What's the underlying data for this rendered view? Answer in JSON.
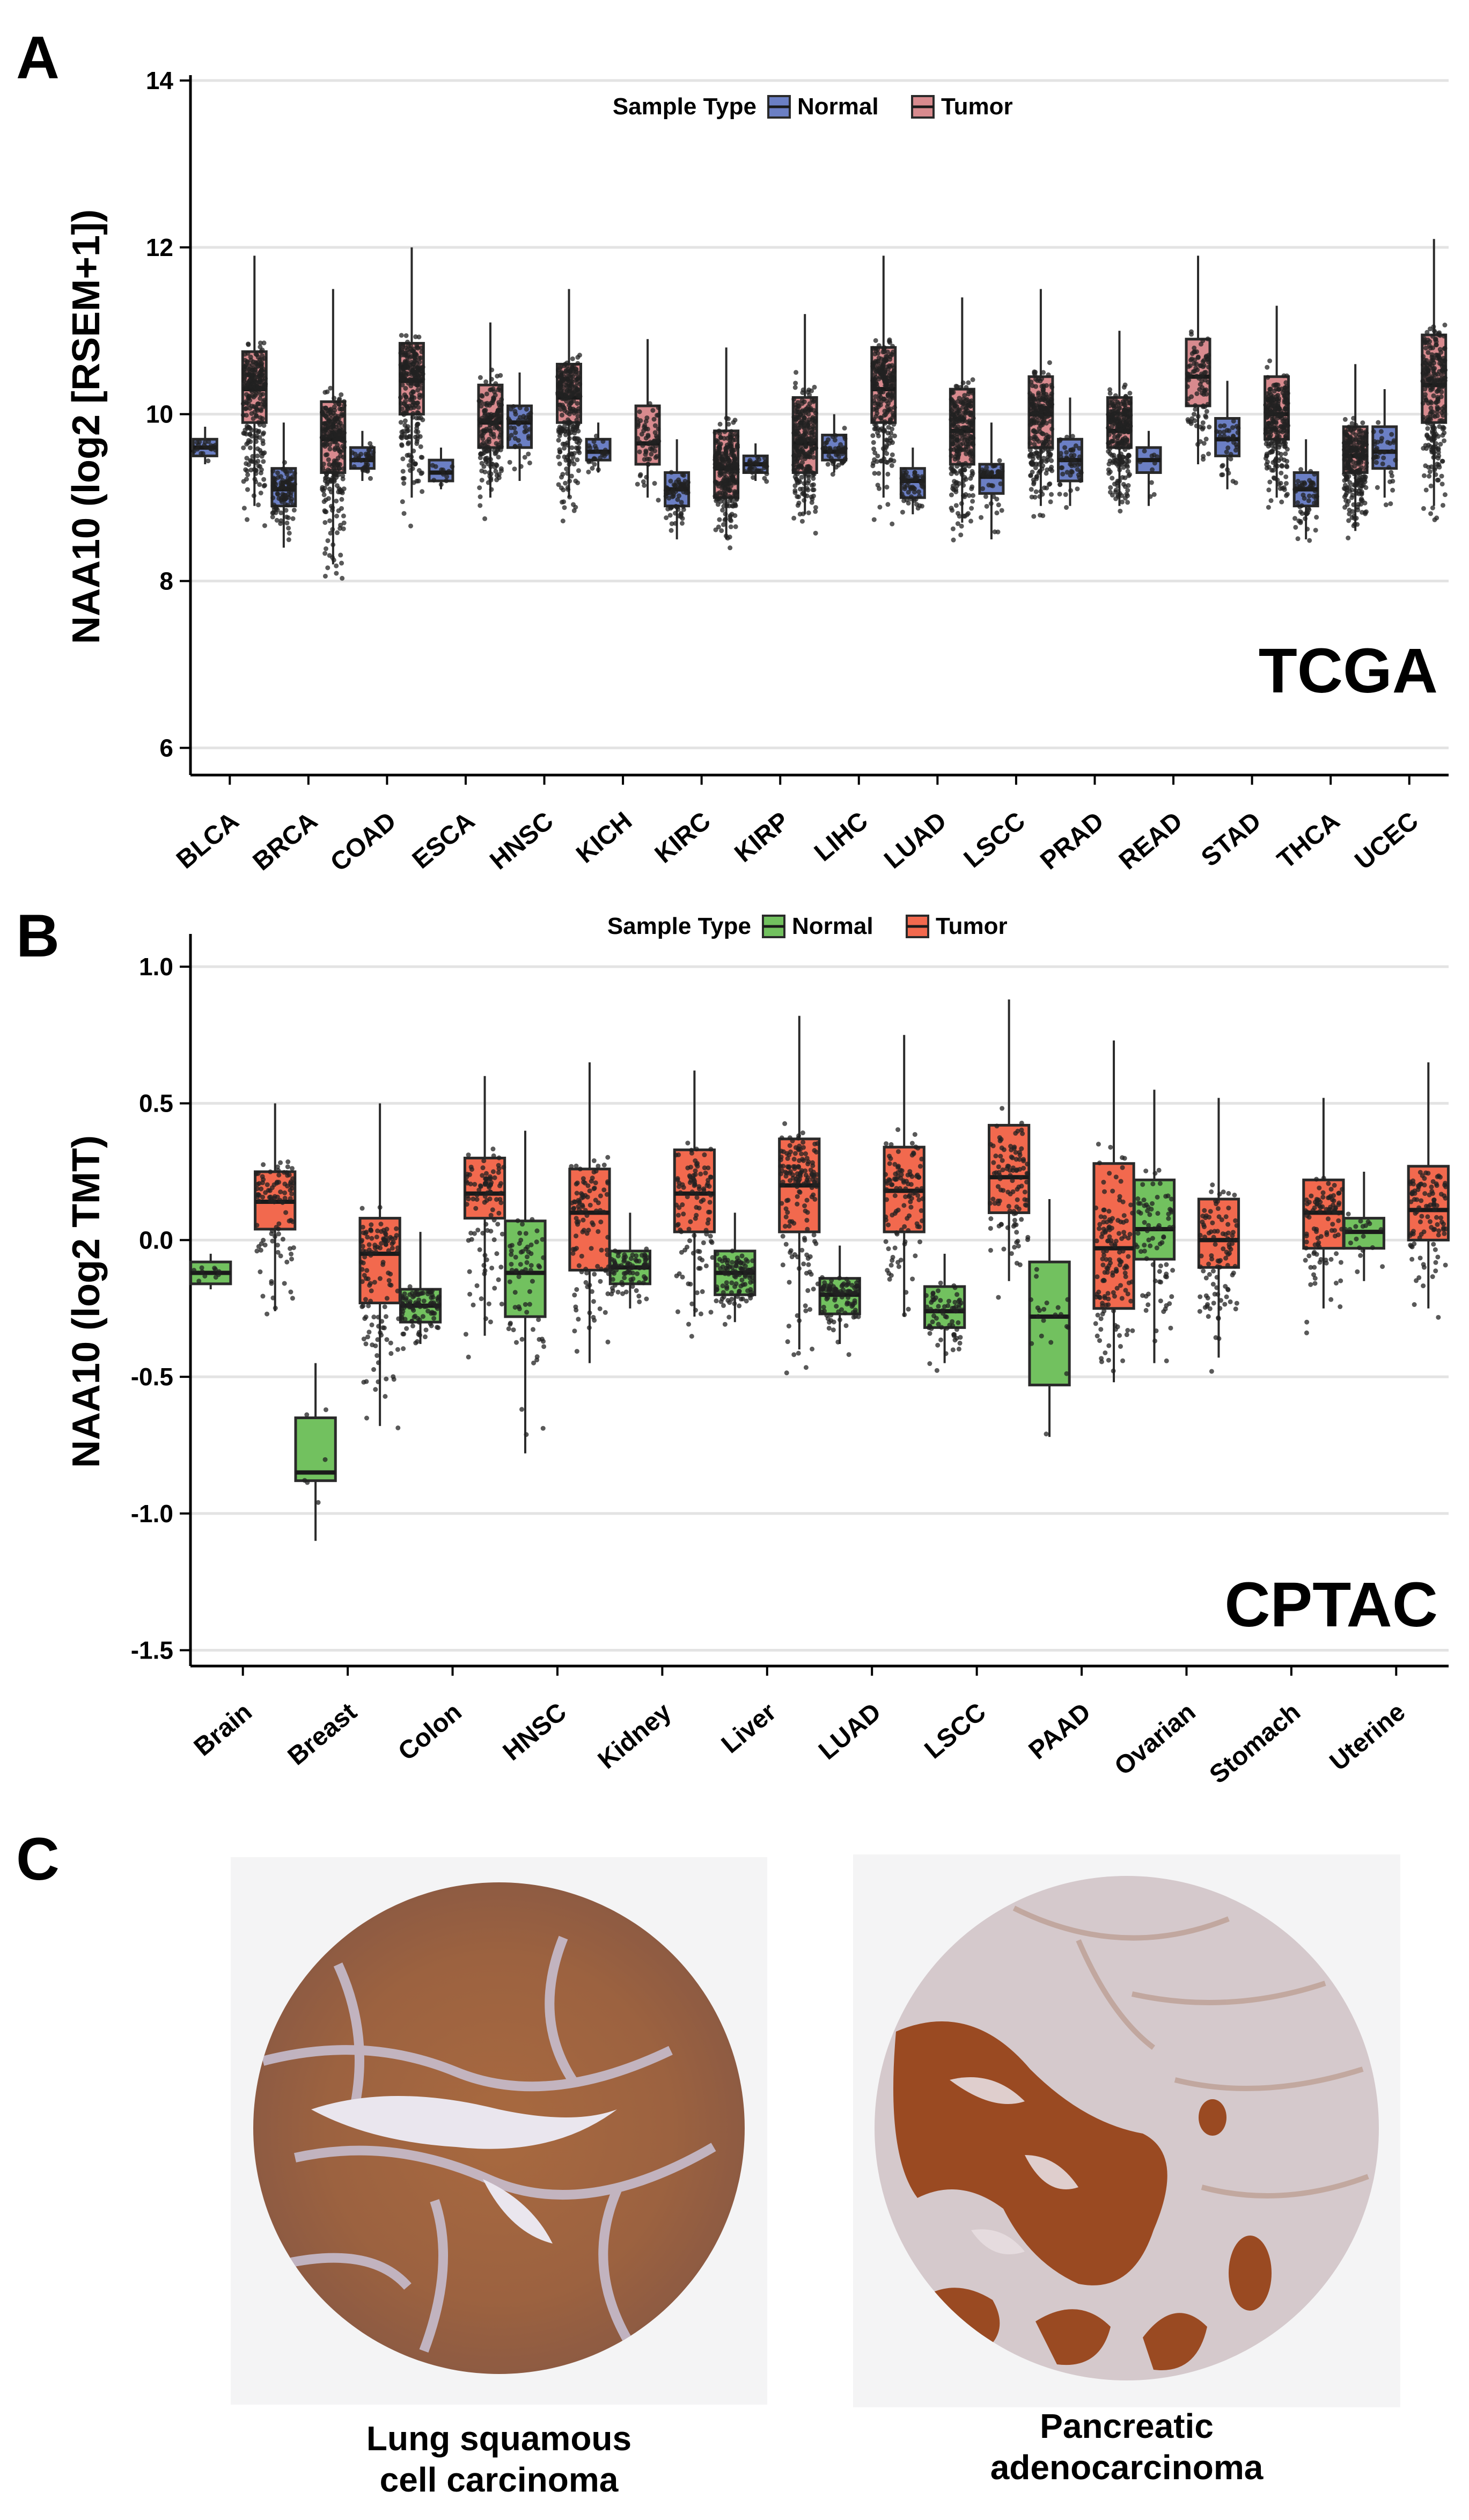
{
  "panels": {
    "a": "A",
    "b": "B",
    "c": "C"
  },
  "colors": {
    "normal_a": "#6b7fc4",
    "tumor_a": "#d88a8e",
    "normal_b": "#72c15f",
    "tumor_b": "#f2694e",
    "grid": "#e3e3e3"
  },
  "chart_data": [
    {
      "type": "box",
      "title": "",
      "xlabel": "",
      "ylabel": "NAA10 (log2 [RSEM+1])",
      "ylim": [
        5.7,
        14
      ],
      "yticks": [
        6,
        8,
        10,
        12,
        14
      ],
      "legend_title": "Sample Type",
      "legend": [
        "Normal",
        "Tumor"
      ],
      "annotation": "TCGA",
      "categories": [
        "BLCA",
        "BRCA",
        "COAD",
        "ESCA",
        "HNSC",
        "KICH",
        "KIRC",
        "KIRP",
        "LIHC",
        "LUAD",
        "LSCC",
        "PRAD",
        "READ",
        "STAD",
        "THCA",
        "UCEC"
      ],
      "series": [
        {
          "name": "Normal",
          "boxes": [
            {
              "min": 9.4,
              "q1": 9.5,
              "median": 9.6,
              "q3": 9.7,
              "max": 9.85,
              "n": 19
            },
            {
              "min": 8.4,
              "q1": 8.9,
              "median": 9.1,
              "q3": 9.35,
              "max": 9.9,
              "n": 110
            },
            {
              "min": 9.2,
              "q1": 9.35,
              "median": 9.45,
              "q3": 9.6,
              "max": 9.8,
              "n": 41
            },
            {
              "min": 9.1,
              "q1": 9.2,
              "median": 9.3,
              "q3": 9.45,
              "max": 9.6,
              "n": 11
            },
            {
              "min": 9.2,
              "q1": 9.6,
              "median": 9.9,
              "q3": 10.1,
              "max": 10.5,
              "n": 44
            },
            {
              "min": 9.3,
              "q1": 9.45,
              "median": 9.55,
              "q3": 9.7,
              "max": 9.9,
              "n": 25
            },
            {
              "min": 8.5,
              "q1": 8.9,
              "median": 9.1,
              "q3": 9.3,
              "max": 9.7,
              "n": 72
            },
            {
              "min": 9.2,
              "q1": 9.3,
              "median": 9.4,
              "q3": 9.5,
              "max": 9.65,
              "n": 32
            },
            {
              "min": 9.3,
              "q1": 9.45,
              "median": 9.55,
              "q3": 9.75,
              "max": 10,
              "n": 50
            },
            {
              "min": 8.8,
              "q1": 9.0,
              "median": 9.2,
              "q3": 9.35,
              "max": 9.6,
              "n": 59
            },
            {
              "min": 8.5,
              "q1": 9.05,
              "median": 9.25,
              "q3": 9.4,
              "max": 9.9,
              "n": 51
            },
            {
              "min": 8.9,
              "q1": 9.2,
              "median": 9.45,
              "q3": 9.7,
              "max": 10.2,
              "n": 52
            },
            {
              "min": 8.9,
              "q1": 9.3,
              "median": 9.45,
              "q3": 9.6,
              "max": 9.8,
              "n": 10
            },
            {
              "min": 9.1,
              "q1": 9.5,
              "median": 9.7,
              "q3": 9.95,
              "max": 10.4,
              "n": 35
            },
            {
              "min": 8.5,
              "q1": 8.9,
              "median": 9.1,
              "q3": 9.3,
              "max": 9.7,
              "n": 59
            },
            {
              "min": 9.0,
              "q1": 9.35,
              "median": 9.55,
              "q3": 9.85,
              "max": 10.3,
              "n": 35
            }
          ]
        },
        {
          "name": "Tumor",
          "boxes": [
            {
              "min": 8.9,
              "q1": 9.9,
              "median": 10.3,
              "q3": 10.75,
              "max": 11.9,
              "n": 408
            },
            {
              "min": 8.2,
              "q1": 9.3,
              "median": 9.7,
              "q3": 10.15,
              "max": 11.5,
              "n": 1100
            },
            {
              "min": 9.0,
              "q1": 10.0,
              "median": 10.4,
              "q3": 10.85,
              "max": 12.0,
              "n": 286
            },
            {
              "min": 9.0,
              "q1": 9.6,
              "median": 9.9,
              "q3": 10.35,
              "max": 11.1,
              "n": 184
            },
            {
              "min": 9.0,
              "q1": 9.9,
              "median": 10.2,
              "q3": 10.6,
              "max": 11.5,
              "n": 520
            },
            {
              "min": 9.0,
              "q1": 9.4,
              "median": 9.65,
              "q3": 10.1,
              "max": 10.9,
              "n": 66
            },
            {
              "min": 8.5,
              "q1": 9.0,
              "median": 9.35,
              "q3": 9.8,
              "max": 10.8,
              "n": 533
            },
            {
              "min": 8.8,
              "q1": 9.3,
              "median": 9.65,
              "q3": 10.2,
              "max": 11.2,
              "n": 290
            },
            {
              "min": 9.0,
              "q1": 9.9,
              "median": 10.3,
              "q3": 10.8,
              "max": 11.9,
              "n": 371
            },
            {
              "min": 8.7,
              "q1": 9.4,
              "median": 9.8,
              "q3": 10.3,
              "max": 11.4,
              "n": 515
            },
            {
              "min": 8.9,
              "q1": 9.6,
              "median": 10.0,
              "q3": 10.45,
              "max": 11.5,
              "n": 501
            },
            {
              "min": 8.9,
              "q1": 9.6,
              "median": 9.8,
              "q3": 10.2,
              "max": 11.0,
              "n": 497
            },
            {
              "min": 9.4,
              "q1": 10.1,
              "median": 10.45,
              "q3": 10.9,
              "max": 11.9,
              "n": 95
            },
            {
              "min": 9.0,
              "q1": 9.7,
              "median": 10.0,
              "q3": 10.45,
              "max": 11.3,
              "n": 415
            },
            {
              "min": 8.6,
              "q1": 9.3,
              "median": 9.5,
              "q3": 9.85,
              "max": 10.6,
              "n": 505
            },
            {
              "min": 8.9,
              "q1": 9.9,
              "median": 10.35,
              "q3": 10.95,
              "max": 12.1,
              "n": 545
            }
          ]
        }
      ]
    },
    {
      "type": "box",
      "title": "",
      "xlabel": "",
      "ylabel": "NAA10 (log2 TMT)",
      "ylim": [
        -1.55,
        1.1
      ],
      "yticks": [
        1.0,
        0.5,
        0.0,
        -0.5,
        -1.0,
        -1.5
      ],
      "ytick_labels": [
        "1.0",
        "0.5",
        "0.0",
        "-0.5",
        "-1.0",
        "-1.5"
      ],
      "legend_title": "Sample Type",
      "legend": [
        "Normal",
        "Tumor"
      ],
      "annotation": "CPTAC",
      "categories": [
        "Brain",
        "Breast",
        "Colon",
        "HNSC",
        "Kidney",
        "Liver",
        "LUAD",
        "LSCC",
        "PAAD",
        "Ovarian",
        "Stomach",
        "Uterine"
      ],
      "series": [
        {
          "name": "Normal",
          "boxes": [
            {
              "min": -0.18,
              "q1": -0.16,
              "median": -0.12,
              "q3": -0.08,
              "max": -0.05,
              "n": 10
            },
            {
              "min": -1.1,
              "q1": -0.88,
              "median": -0.85,
              "q3": -0.65,
              "max": -0.45,
              "n": 6
            },
            {
              "min": -0.38,
              "q1": -0.3,
              "median": -0.24,
              "q3": -0.18,
              "max": 0.03,
              "n": 100
            },
            {
              "min": -0.78,
              "q1": -0.28,
              "median": -0.12,
              "q3": 0.07,
              "max": 0.4,
              "n": 66
            },
            {
              "min": -0.25,
              "q1": -0.16,
              "median": -0.1,
              "q3": -0.04,
              "max": 0.1,
              "n": 80
            },
            {
              "min": -0.3,
              "q1": -0.2,
              "median": -0.12,
              "q3": -0.04,
              "max": 0.1,
              "n": 100
            },
            {
              "min": -0.38,
              "q1": -0.27,
              "median": -0.2,
              "q3": -0.14,
              "max": -0.02,
              "n": 100
            },
            {
              "min": -0.45,
              "q1": -0.32,
              "median": -0.26,
              "q3": -0.17,
              "max": -0.05,
              "n": 66
            },
            {
              "min": -0.72,
              "q1": -0.53,
              "median": -0.28,
              "q3": -0.08,
              "max": 0.15,
              "n": 20
            },
            {
              "min": -0.45,
              "q1": -0.07,
              "median": 0.04,
              "q3": 0.22,
              "max": 0.55,
              "n": 80
            },
            {
              "min": 0,
              "q1": 0,
              "median": 0,
              "q3": 0,
              "max": 0,
              "n": 0
            },
            {
              "min": -0.15,
              "q1": -0.03,
              "median": 0.03,
              "q3": 0.08,
              "max": 0.25,
              "n": 20
            }
          ]
        },
        {
          "name": "Tumor",
          "boxes": [
            {
              "min": -0.26,
              "q1": 0.04,
              "median": 0.14,
              "q3": 0.25,
              "max": 0.5,
              "n": 100
            },
            {
              "min": -0.68,
              "q1": -0.23,
              "median": -0.05,
              "q3": 0.08,
              "max": 0.5,
              "n": 122
            },
            {
              "min": -0.35,
              "q1": 0.08,
              "median": 0.17,
              "q3": 0.3,
              "max": 0.6,
              "n": 100
            },
            {
              "min": -0.45,
              "q1": -0.11,
              "median": 0.1,
              "q3": 0.26,
              "max": 0.65,
              "n": 110
            },
            {
              "min": -0.28,
              "q1": 0.03,
              "median": 0.17,
              "q3": 0.33,
              "max": 0.62,
              "n": 110
            },
            {
              "min": -0.4,
              "q1": 0.03,
              "median": 0.2,
              "q3": 0.37,
              "max": 0.82,
              "n": 160
            },
            {
              "min": -0.28,
              "q1": 0.03,
              "median": 0.18,
              "q3": 0.34,
              "max": 0.75,
              "n": 110
            },
            {
              "min": -0.15,
              "q1": 0.1,
              "median": 0.23,
              "q3": 0.42,
              "max": 0.88,
              "n": 108
            },
            {
              "min": -0.52,
              "q1": -0.25,
              "median": -0.03,
              "q3": 0.28,
              "max": 0.73,
              "n": 140
            },
            {
              "min": -0.43,
              "q1": -0.1,
              "median": 0.0,
              "q3": 0.15,
              "max": 0.52,
              "n": 100
            },
            {
              "min": -0.25,
              "q1": -0.03,
              "median": 0.1,
              "q3": 0.22,
              "max": 0.52,
              "n": 100
            },
            {
              "min": -0.25,
              "q1": 0.0,
              "median": 0.11,
              "q3": 0.27,
              "max": 0.65,
              "n": 100
            }
          ]
        }
      ]
    }
  ],
  "captions": {
    "left_line1": "Lung squamous",
    "left_line2": "cell carcinoma",
    "right_line1": "Pancreatic",
    "right_line2": "adenocarcinoma"
  }
}
